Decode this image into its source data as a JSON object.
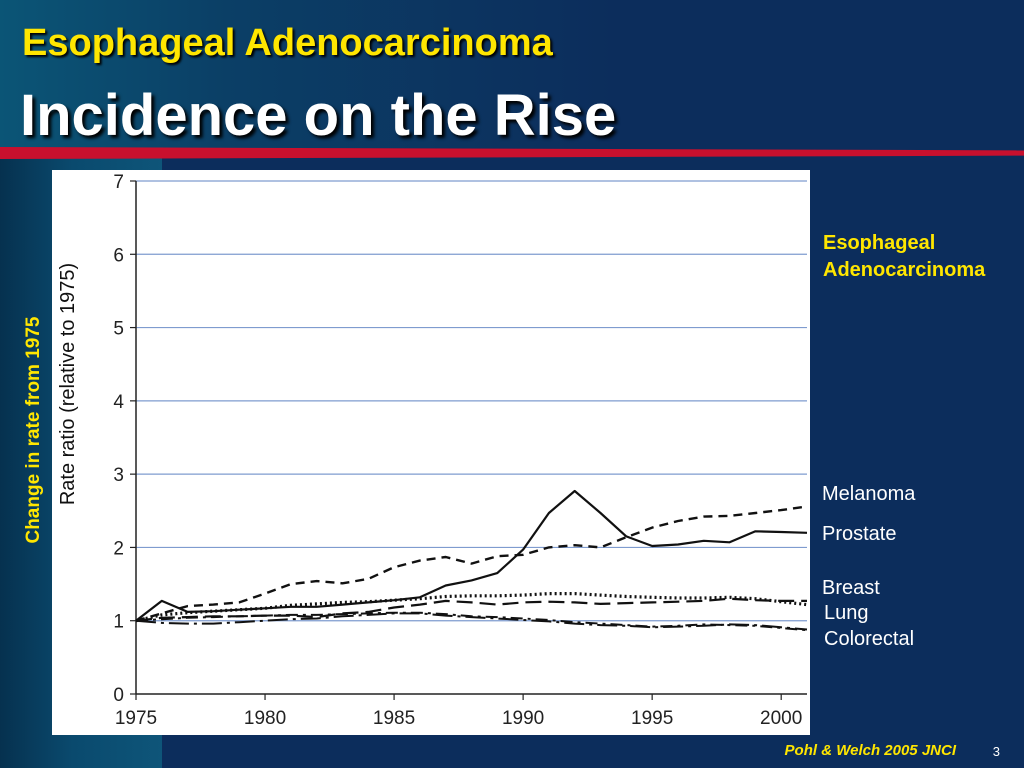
{
  "slide": {
    "title_line1": "Esophageal Adenocarcinoma",
    "title_line2": "Incidence on the Rise",
    "footer_citation": "Pohl & Welch 2005 JNCI",
    "slide_number": "3",
    "side_axis_label": "Change in rate from 1975"
  },
  "colors": {
    "highlight_yellow": "#ffe600",
    "accent_red": "#c8102e",
    "background_navy": "#0c2d5c"
  },
  "chart_data": {
    "type": "line",
    "title": "",
    "xlabel": "",
    "ylabel": "Rate ratio (relative to 1975)",
    "xlim": [
      1975,
      2001
    ],
    "ylim": [
      0,
      7
    ],
    "xticks": [
      1975,
      1980,
      1985,
      1990,
      1995,
      2000
    ],
    "yticks": [
      0,
      1,
      2,
      3,
      4,
      5,
      6,
      7
    ],
    "grid": true,
    "legend_position": "right",
    "series": [
      {
        "name": "Esophageal Adenocarcinoma",
        "style": "solid",
        "x": [
          1975,
          1976,
          1977,
          1978,
          1979,
          1980,
          1981,
          1982,
          1983,
          1984,
          1985,
          1986,
          1987,
          1988,
          1989,
          1990,
          1991,
          1992,
          1993,
          1994,
          1995,
          1996,
          1997,
          1998,
          1999,
          2000,
          2001
        ],
        "values": [
          1.0,
          1.27,
          1.12,
          1.13,
          1.15,
          1.17,
          1.19,
          1.19,
          1.22,
          1.25,
          1.28,
          1.32,
          1.48,
          1.55,
          1.65,
          1.97,
          2.47,
          2.77,
          2.47,
          2.15,
          2.02,
          2.04,
          2.09,
          2.07,
          2.22,
          2.21,
          2.2
        ]
      },
      {
        "name": "Melanoma",
        "style": "dashed",
        "x": [
          1975,
          1976,
          1977,
          1978,
          1979,
          1980,
          1981,
          1982,
          1983,
          1984,
          1985,
          1986,
          1987,
          1988,
          1989,
          1990,
          1991,
          1992,
          1993,
          1994,
          1995,
          1996,
          1997,
          1998,
          1999,
          2000,
          2001
        ],
        "values": [
          1.0,
          1.1,
          1.2,
          1.22,
          1.25,
          1.37,
          1.5,
          1.54,
          1.51,
          1.57,
          1.73,
          1.82,
          1.87,
          1.78,
          1.88,
          1.9,
          2.0,
          2.03,
          2.0,
          2.14,
          2.27,
          2.36,
          2.42,
          2.43,
          2.47,
          2.51,
          2.56
        ]
      },
      {
        "name": "Prostate",
        "style": "dotted",
        "x": [
          1975,
          1976,
          1977,
          1978,
          1979,
          1980,
          1981,
          1982,
          1983,
          1984,
          1985,
          1986,
          1987,
          1988,
          1989,
          1990,
          1991,
          1992,
          1993,
          1994,
          1995,
          1996,
          1997,
          1998,
          1999,
          2000,
          2001
        ],
        "values": [
          1.0,
          1.08,
          1.11,
          1.13,
          1.15,
          1.17,
          1.21,
          1.23,
          1.25,
          1.26,
          1.28,
          1.3,
          1.33,
          1.34,
          1.34,
          1.35,
          1.37,
          1.37,
          1.35,
          1.33,
          1.32,
          1.31,
          1.31,
          1.32,
          1.3,
          1.26,
          1.22
        ]
      },
      {
        "name": "Breast",
        "style": "longdash",
        "x": [
          1975,
          1976,
          1977,
          1978,
          1979,
          1980,
          1981,
          1982,
          1983,
          1984,
          1985,
          1986,
          1987,
          1988,
          1989,
          1990,
          1991,
          1992,
          1993,
          1994,
          1995,
          1996,
          1997,
          1998,
          1999,
          2000,
          2001
        ],
        "values": [
          1.0,
          1.04,
          1.05,
          1.06,
          1.06,
          1.07,
          1.07,
          1.05,
          1.1,
          1.12,
          1.18,
          1.22,
          1.27,
          1.25,
          1.22,
          1.25,
          1.26,
          1.25,
          1.23,
          1.24,
          1.25,
          1.26,
          1.27,
          1.3,
          1.28,
          1.27,
          1.27
        ]
      },
      {
        "name": "Lung",
        "style": "dashdot",
        "x": [
          1975,
          1976,
          1977,
          1978,
          1979,
          1980,
          1981,
          1982,
          1983,
          1984,
          1985,
          1986,
          1987,
          1988,
          1989,
          1990,
          1991,
          1992,
          1993,
          1994,
          1995,
          1996,
          1997,
          1998,
          1999,
          2000,
          2001
        ],
        "values": [
          1.0,
          1.02,
          1.04,
          1.05,
          1.06,
          1.07,
          1.08,
          1.08,
          1.09,
          1.1,
          1.11,
          1.11,
          1.09,
          1.06,
          1.05,
          1.03,
          1.01,
          0.98,
          0.96,
          0.94,
          0.92,
          0.93,
          0.95,
          0.94,
          0.93,
          0.9,
          0.87
        ]
      },
      {
        "name": "Colorectal",
        "style": "longdashdot",
        "x": [
          1975,
          1976,
          1977,
          1978,
          1979,
          1980,
          1981,
          1982,
          1983,
          1984,
          1985,
          1986,
          1987,
          1988,
          1989,
          1990,
          1991,
          1992,
          1993,
          1994,
          1995,
          1996,
          1997,
          1998,
          1999,
          2000,
          2001
        ],
        "values": [
          1.0,
          0.97,
          0.96,
          0.96,
          0.98,
          1.0,
          1.02,
          1.03,
          1.06,
          1.08,
          1.1,
          1.1,
          1.07,
          1.05,
          1.03,
          1.01,
          0.99,
          0.96,
          0.94,
          0.93,
          0.91,
          0.92,
          0.93,
          0.95,
          0.94,
          0.91,
          0.88
        ]
      }
    ]
  }
}
